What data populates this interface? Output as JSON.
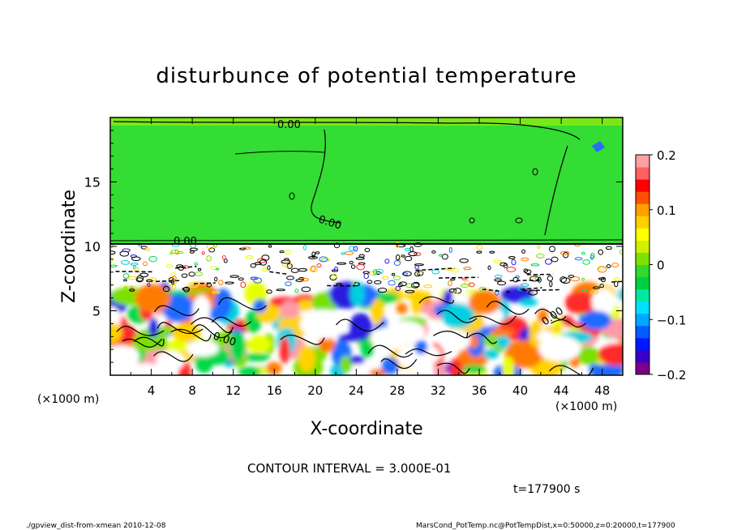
{
  "chart_data": {
    "type": "heatmap",
    "title": "disturbunce of potential temperature",
    "xlabel": "X-coordinate",
    "ylabel": "Z-coordinate",
    "x_unit": "(×1000 m)",
    "y_unit": "(×1000 m)",
    "xlim": [
      0,
      50
    ],
    "ylim": [
      0,
      20
    ],
    "x_ticks": [
      4,
      8,
      12,
      16,
      20,
      24,
      28,
      32,
      36,
      40,
      44,
      48
    ],
    "y_ticks": [
      5,
      10,
      15
    ],
    "colorbar": {
      "min": -0.2,
      "max": 0.2,
      "ticks": [
        0.2,
        0.1,
        0,
        -0.1,
        -0.2
      ],
      "tick_labels": [
        "0.2",
        "0.1",
        "0",
        "−0.1",
        "−0.2"
      ],
      "colors": [
        "#7a0088",
        "#3a00c8",
        "#0018ff",
        "#005cff",
        "#00a8ff",
        "#00e0ff",
        "#00e8a0",
        "#00d040",
        "#30d830",
        "#80e000",
        "#d0f000",
        "#ffff00",
        "#ffd000",
        "#ffa000",
        "#ff5000",
        "#ff0000",
        "#ff6060",
        "#ffa0a0"
      ]
    },
    "contour_labels": [
      "0.00",
      "0.00",
      "0.00",
      "0.00",
      "0.00"
    ],
    "contour_interval_text": "CONTOUR INTERVAL = 3.000E-01",
    "time_text": "t=177900 s"
  },
  "footer": {
    "left": "./gpview_dist-from-xmean  2010-12-08",
    "right": "MarsCond_PotTemp.nc@PotTempDist,x=0:50000,z=0:20000,t=177900"
  },
  "colors": {
    "upper_field": "#33dd33",
    "boundary_layer": "#ffffff"
  }
}
